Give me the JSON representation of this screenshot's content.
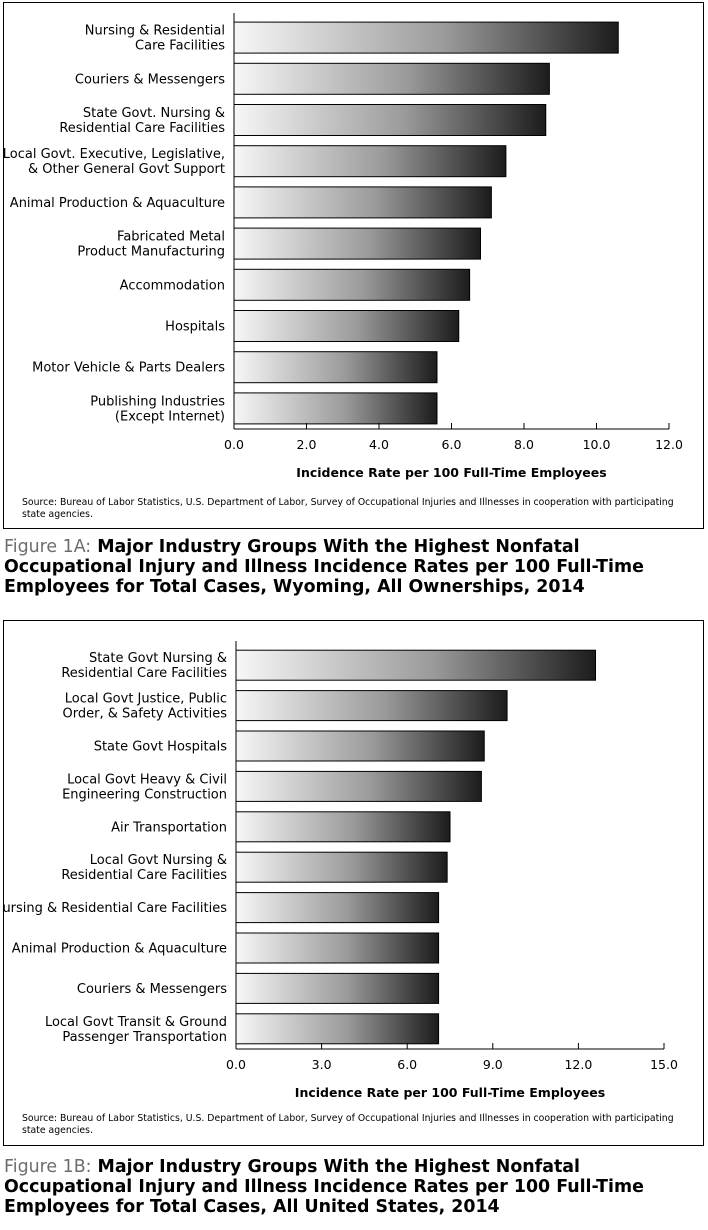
{
  "chart_data": [
    {
      "type": "bar",
      "orientation": "horizontal",
      "categories": [
        [
          "Nursing & Residential",
          "Care Facilities"
        ],
        [
          "Couriers & Messengers"
        ],
        [
          "State Govt. Nursing &",
          "Residential Care Facilities"
        ],
        [
          "Local Govt. Executive, Legislative,",
          "& Other General Govt Support"
        ],
        [
          "Animal Production & Aquaculture"
        ],
        [
          "Fabricated Metal",
          "Product Manufacturing"
        ],
        [
          "Accommodation"
        ],
        [
          "Hospitals"
        ],
        [
          "Motor Vehicle & Parts Dealers"
        ],
        [
          "Publishing Industries",
          "(Except Internet)"
        ]
      ],
      "values": [
        10.6,
        8.7,
        8.6,
        7.5,
        7.1,
        6.8,
        6.5,
        6.2,
        5.6,
        5.6
      ],
      "xlim": [
        0,
        12
      ],
      "ticks": [
        "0.0",
        "2.0",
        "4.0",
        "6.0",
        "8.0",
        "10.0",
        "12.0"
      ],
      "tick_values": [
        0,
        2,
        4,
        6,
        8,
        10,
        12
      ],
      "xlabel": "Incidence Rate per 100 Full-Time Employees",
      "ylabel": "",
      "source": "Source: Bureau of Labor Statistics, U.S. Department of Labor, Survey of Occupational Injuries and Illnesses in cooperation with participating state agencies.",
      "fig_label": "Figure 1A:",
      "title": "Major Industry Groups With the Highest Nonfatal Occupational Injury and Illness Incidence Rates per 100 Full-Time Employees for Total Cases, Wyoming, All Ownerships, 2014",
      "grid": false
    },
    {
      "type": "bar",
      "orientation": "horizontal",
      "categories": [
        [
          "State Govt Nursing &",
          "Residential Care Facilities"
        ],
        [
          "Local Govt Justice, Public",
          "Order, & Safety Activities"
        ],
        [
          "State Govt Hospitals"
        ],
        [
          "Local Govt Heavy & Civil",
          "Engineering Construction"
        ],
        [
          "Air Transportation"
        ],
        [
          "Local Govt Nursing &",
          "Residential Care Facilities"
        ],
        [
          "Nursing & Residential Care Facilities"
        ],
        [
          "Animal Production & Aquaculture"
        ],
        [
          "Couriers & Messengers"
        ],
        [
          "Local Govt Transit & Ground",
          "Passenger Transportation"
        ]
      ],
      "values": [
        12.6,
        9.5,
        8.7,
        8.6,
        7.5,
        7.4,
        7.1,
        7.1,
        7.1,
        7.1
      ],
      "xlim": [
        0,
        15
      ],
      "ticks": [
        "0.0",
        "3.0",
        "6.0",
        "9.0",
        "12.0",
        "15.0"
      ],
      "tick_values": [
        0,
        3,
        6,
        9,
        12,
        15
      ],
      "xlabel": "Incidence Rate per 100 Full-Time Employees",
      "ylabel": "",
      "source": "Source: Bureau of Labor Statistics, U.S. Department of Labor, Survey of Occupational Injuries and Illnesses in cooperation with participating state agencies.",
      "fig_label": "Figure 1B:",
      "title": "Major Industry Groups With the Highest Nonfatal Occupational Injury and Illness Incidence Rates per 100 Full-Time Employees for Total Cases, All United States, 2014",
      "grid": false
    }
  ],
  "colors": {
    "bar_gradient_start": "#f7f7f7",
    "bar_gradient_end": "#1c1c1c",
    "figure_label": "#6d6d6d"
  }
}
